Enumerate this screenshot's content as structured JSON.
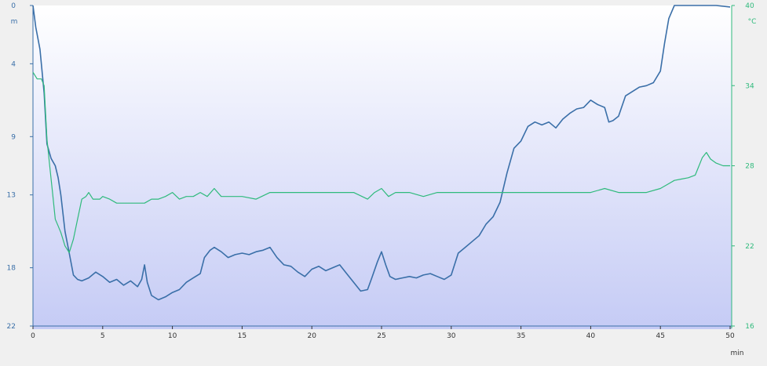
{
  "chart_data": {
    "type": "line",
    "xlabel": "min",
    "x_ticks": [
      0,
      5,
      10,
      15,
      20,
      25,
      30,
      35,
      40,
      45,
      50
    ],
    "xlim": [
      0,
      50
    ],
    "y_left": {
      "label": "m",
      "ticks": [
        0,
        4,
        9,
        13,
        18,
        22
      ],
      "ylim": [
        0,
        22
      ],
      "inverted": true,
      "color": "#3a6fa8"
    },
    "y_right": {
      "label": "°C",
      "ticks": [
        40,
        34,
        28,
        22,
        16
      ],
      "ylim": [
        16,
        40
      ],
      "color": "#2fba7c"
    },
    "grid": false,
    "background_gradient": [
      "#ffffff",
      "#c5cbf5"
    ],
    "series": [
      {
        "axis": "left",
        "color": "#3a6fa8",
        "x": [
          0,
          0.2,
          0.5,
          0.8,
          1.0,
          1.3,
          1.6,
          1.8,
          2.0,
          2.3,
          2.6,
          2.9,
          3.2,
          3.5,
          4.0,
          4.5,
          5.0,
          5.5,
          6.0,
          6.5,
          7.0,
          7.5,
          7.8,
          8.0,
          8.2,
          8.5,
          9.0,
          9.5,
          10.0,
          10.5,
          11.0,
          11.5,
          12.0,
          12.3,
          12.7,
          13.0,
          13.5,
          14.0,
          14.5,
          15.0,
          15.5,
          16.0,
          16.5,
          17.0,
          17.5,
          18.0,
          18.5,
          19.0,
          19.5,
          20.0,
          20.5,
          21.0,
          21.5,
          22.0,
          22.5,
          23.0,
          23.5,
          24.0,
          24.3,
          24.7,
          25.0,
          25.3,
          25.6,
          26.0,
          26.5,
          27.0,
          27.5,
          28.0,
          28.5,
          29.0,
          29.5,
          30.0,
          30.5,
          31.0,
          31.5,
          32.0,
          32.5,
          33.0,
          33.5,
          34.0,
          34.5,
          35.0,
          35.5,
          36.0,
          36.5,
          37.0,
          37.5,
          38.0,
          38.5,
          39.0,
          39.5,
          40.0,
          40.5,
          41.0,
          41.3,
          41.6,
          42.0,
          42.5,
          43.0,
          43.5,
          44.0,
          44.5,
          45.0,
          45.3,
          45.6,
          46.0,
          47.0,
          48.0,
          49.0,
          50.0
        ],
        "values": [
          0.0,
          1.5,
          3.0,
          6.0,
          9.5,
          10.5,
          11.0,
          11.8,
          13.0,
          15.5,
          17.0,
          18.5,
          18.8,
          18.9,
          18.7,
          18.3,
          18.6,
          19.0,
          18.8,
          19.2,
          18.9,
          19.3,
          18.8,
          17.8,
          19.0,
          19.9,
          20.2,
          20.0,
          19.7,
          19.5,
          19.0,
          18.7,
          18.4,
          17.3,
          16.8,
          16.6,
          16.9,
          17.3,
          17.1,
          17.0,
          17.1,
          16.9,
          16.8,
          16.6,
          17.3,
          17.8,
          17.9,
          18.3,
          18.6,
          18.1,
          17.9,
          18.2,
          18.0,
          17.8,
          18.4,
          19.0,
          19.6,
          19.5,
          18.7,
          17.6,
          16.9,
          17.8,
          18.6,
          18.8,
          18.7,
          18.6,
          18.7,
          18.5,
          18.4,
          18.6,
          18.8,
          18.5,
          17.0,
          16.6,
          16.2,
          15.8,
          15.0,
          14.5,
          13.5,
          11.5,
          9.8,
          9.3,
          8.3,
          8.0,
          8.2,
          8.0,
          8.4,
          7.8,
          7.4,
          7.1,
          7.0,
          6.5,
          6.8,
          7.0,
          8.0,
          7.9,
          7.6,
          6.2,
          5.9,
          5.6,
          5.5,
          5.3,
          4.5,
          2.6,
          0.9,
          0.0,
          0.0,
          0.0,
          0.0,
          0.1
        ]
      },
      {
        "axis": "right",
        "color": "#2fba7c",
        "x": [
          0,
          0.3,
          0.6,
          0.8,
          1.0,
          1.2,
          1.4,
          1.6,
          1.8,
          2.0,
          2.3,
          2.6,
          2.9,
          3.2,
          3.5,
          3.8,
          4.0,
          4.3,
          4.8,
          5.0,
          5.5,
          6.0,
          6.5,
          7.0,
          7.5,
          8.0,
          8.5,
          9.0,
          9.5,
          10.0,
          10.5,
          11.0,
          11.5,
          12.0,
          12.5,
          13.0,
          13.5,
          14.0,
          15.0,
          16.0,
          17.0,
          18.0,
          19.0,
          20.0,
          21.0,
          22.0,
          23.0,
          24.0,
          24.5,
          25.0,
          25.5,
          26.0,
          27.0,
          28.0,
          29.0,
          30.0,
          31.0,
          32.0,
          33.0,
          34.0,
          35.0,
          36.0,
          37.0,
          38.0,
          39.0,
          40.0,
          41.0,
          42.0,
          43.0,
          44.0,
          45.0,
          45.5,
          46.0,
          46.5,
          47.0,
          47.5,
          48.0,
          48.3,
          48.6,
          49.0,
          49.5,
          50.0
        ],
        "values": [
          35.0,
          34.5,
          34.5,
          34.0,
          30.0,
          28.0,
          26.0,
          24.0,
          23.5,
          23.0,
          22.0,
          21.5,
          22.5,
          24.0,
          25.5,
          25.7,
          26.0,
          25.5,
          25.5,
          25.7,
          25.5,
          25.2,
          25.2,
          25.2,
          25.2,
          25.2,
          25.5,
          25.5,
          25.7,
          26.0,
          25.5,
          25.7,
          25.7,
          26.0,
          25.7,
          26.3,
          25.7,
          25.7,
          25.7,
          25.5,
          26.0,
          26.0,
          26.0,
          26.0,
          26.0,
          26.0,
          26.0,
          25.5,
          26.0,
          26.3,
          25.7,
          26.0,
          26.0,
          25.7,
          26.0,
          26.0,
          26.0,
          26.0,
          26.0,
          26.0,
          26.0,
          26.0,
          26.0,
          26.0,
          26.0,
          26.0,
          26.3,
          26.0,
          26.0,
          26.0,
          26.3,
          26.6,
          26.9,
          27.0,
          27.1,
          27.3,
          28.6,
          29.0,
          28.5,
          28.2,
          28.0,
          28.0
        ]
      }
    ]
  }
}
